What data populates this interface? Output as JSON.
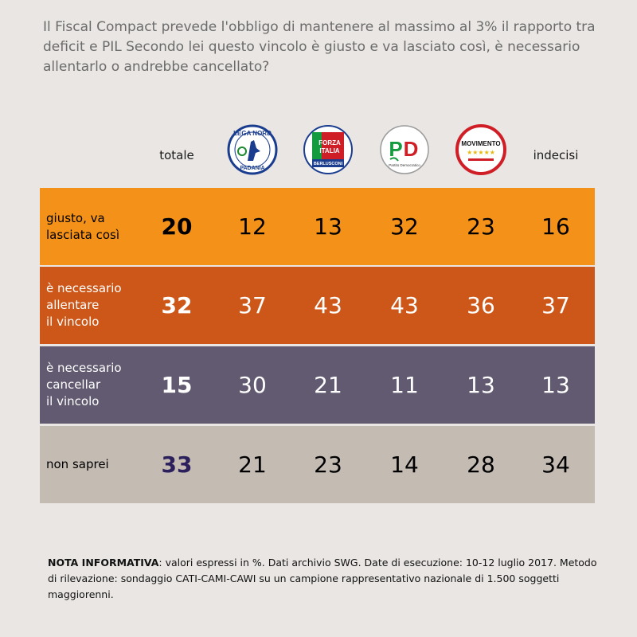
{
  "question": "Il Fiscal Compact prevede l'obbligo di mantenere al massimo al 3% il rapporto tra deficit e PIL Secondo lei questo vincolo è giusto e va lasciato così, è necessario allentarlo o andrebbe cancellato?",
  "chart_data": {
    "type": "table",
    "columns": [
      {
        "key": "totale",
        "label": "totale",
        "kind": "text"
      },
      {
        "key": "lega",
        "label": "",
        "kind": "logo",
        "logo_text": [
          "LEGA NORD",
          "PADANIA"
        ],
        "icon": "lega-nord-logo"
      },
      {
        "key": "forza",
        "label": "",
        "kind": "logo",
        "logo_text": [
          "FORZA",
          "ITALIA",
          "BERLUSCONI"
        ],
        "icon": "forza-italia-logo"
      },
      {
        "key": "pd",
        "label": "",
        "kind": "logo",
        "logo_text": [
          "PD",
          "Partito Democratico"
        ],
        "icon": "pd-logo"
      },
      {
        "key": "m5s",
        "label": "",
        "kind": "logo",
        "logo_text": [
          "MOVIMENTO",
          "★★★★★"
        ],
        "icon": "m5s-logo"
      },
      {
        "key": "indecisi",
        "label": "indecisi",
        "kind": "text"
      }
    ],
    "rows": [
      {
        "label": "giusto, va\nlasciata così",
        "values": [
          20,
          12,
          13,
          32,
          23,
          16
        ],
        "bg": "#f39118",
        "text_color": "#000000",
        "total_color": "#000000"
      },
      {
        "label": "è necessario\nallentare\nil vincolo",
        "values": [
          32,
          37,
          43,
          43,
          36,
          37
        ],
        "bg": "#cc5718",
        "text_color": "#ffffff",
        "total_color": "#ffffff"
      },
      {
        "label": "è necessario\ncancellar\nil vincolo",
        "values": [
          15,
          30,
          21,
          11,
          13,
          13
        ],
        "bg": "#625a70",
        "text_color": "#ffffff",
        "total_color": "#ffffff"
      },
      {
        "label": "non saprei",
        "values": [
          33,
          21,
          23,
          14,
          28,
          34
        ],
        "bg": "#c4bbb3",
        "text_color": "#000000",
        "total_color": "#2b1f5c"
      }
    ]
  },
  "note": {
    "bold": "NOTA INFORMATIVA",
    "text": ": valori espressi in %. Dati archivio SWG. Date di esecuzione: 10-12 luglio 2017. Metodo di rilevazione: sondaggio CATI-CAMI-CAWI su un campione rappresentativo nazionale di 1.500 soggetti maggiorenni."
  }
}
